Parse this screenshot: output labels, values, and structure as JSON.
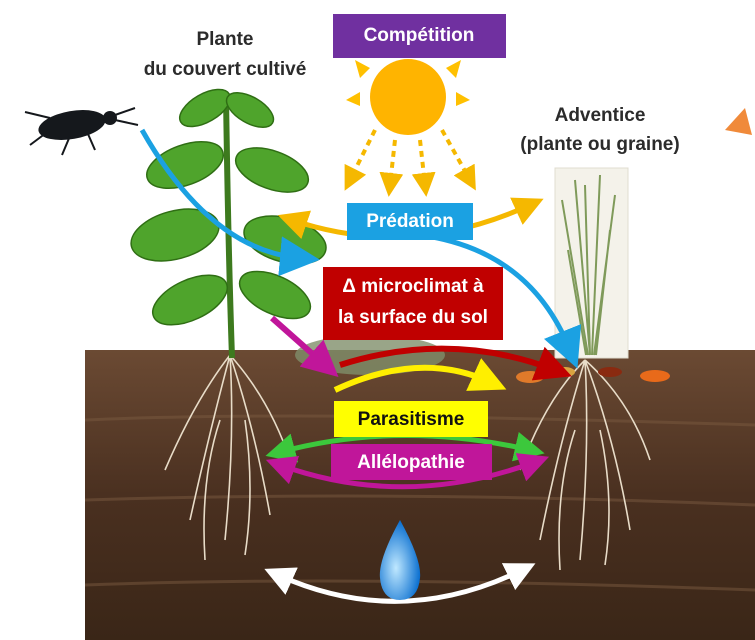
{
  "labels": {
    "crop_plant": [
      "Plante",
      "du couvert cultivé"
    ],
    "competition": "Compétition",
    "weed": [
      "Adventice",
      "(plante ou graine)"
    ],
    "predation": "Prédation",
    "microclimate": [
      "Δ microclimat à",
      "la surface du sol"
    ],
    "parasitism": "Parasitisme",
    "allelopathy": "Allélopathie"
  }
}
